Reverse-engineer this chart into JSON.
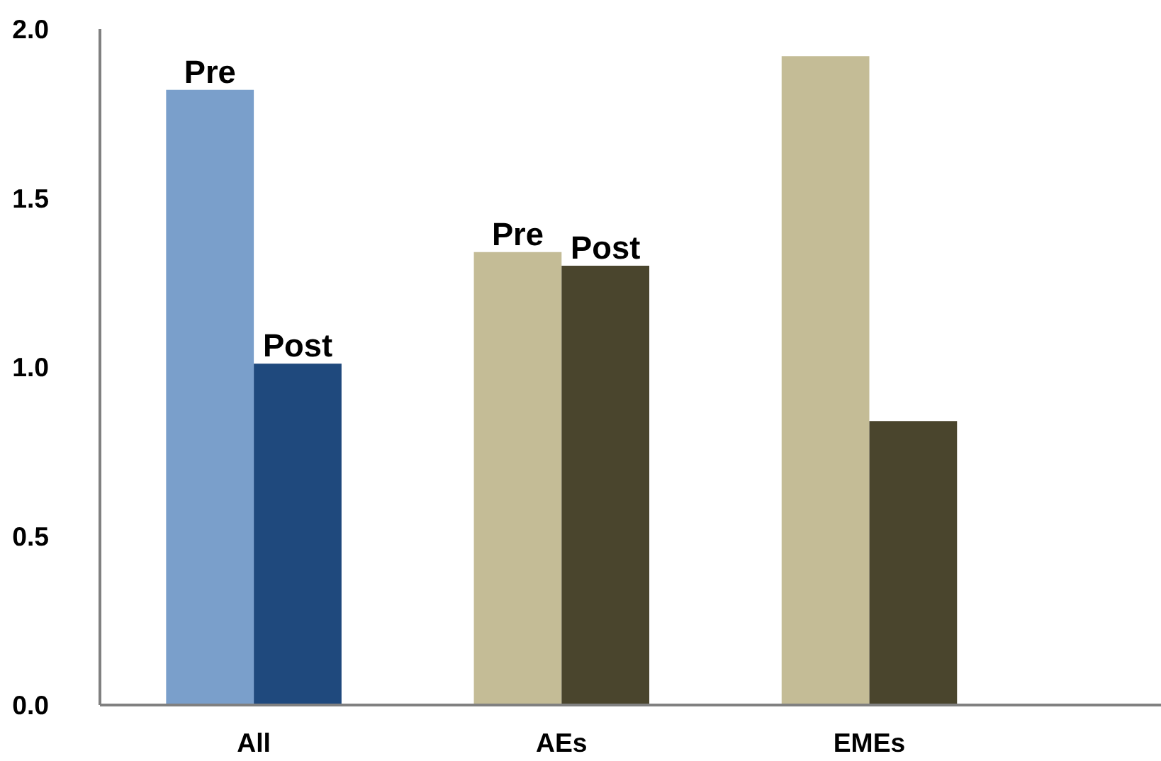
{
  "chart_data": {
    "type": "bar",
    "categories": [
      "All",
      "AEs",
      "EMEs"
    ],
    "series": [
      {
        "colors": [
          "#7a9fcb",
          "#c4bc96",
          "#c4bc96"
        ],
        "values": [
          1.82,
          1.34,
          1.92
        ]
      },
      {
        "colors": [
          "#1f497d",
          "#4a452d",
          "#4a452d"
        ],
        "values": [
          1.01,
          1.3,
          0.84
        ]
      }
    ],
    "annotations": [
      {
        "text": "Pre",
        "x": "All",
        "y": 1.82
      },
      {
        "text": "Post",
        "x": "All",
        "y": 1.01
      },
      {
        "text": "Pre",
        "x": "AEs",
        "y": 1.34
      },
      {
        "text": "Post",
        "x": "AEs",
        "y": 1.3
      }
    ],
    "ylim": [
      0,
      2.0
    ],
    "yticks": [
      {
        "value": 0,
        "label": "0.0"
      },
      {
        "value": 0.5,
        "label": "0.5"
      },
      {
        "value": 1,
        "label": "1.0"
      },
      {
        "value": 1.5,
        "label": "1.5"
      },
      {
        "value": 2,
        "label": "2.0"
      }
    ]
  }
}
